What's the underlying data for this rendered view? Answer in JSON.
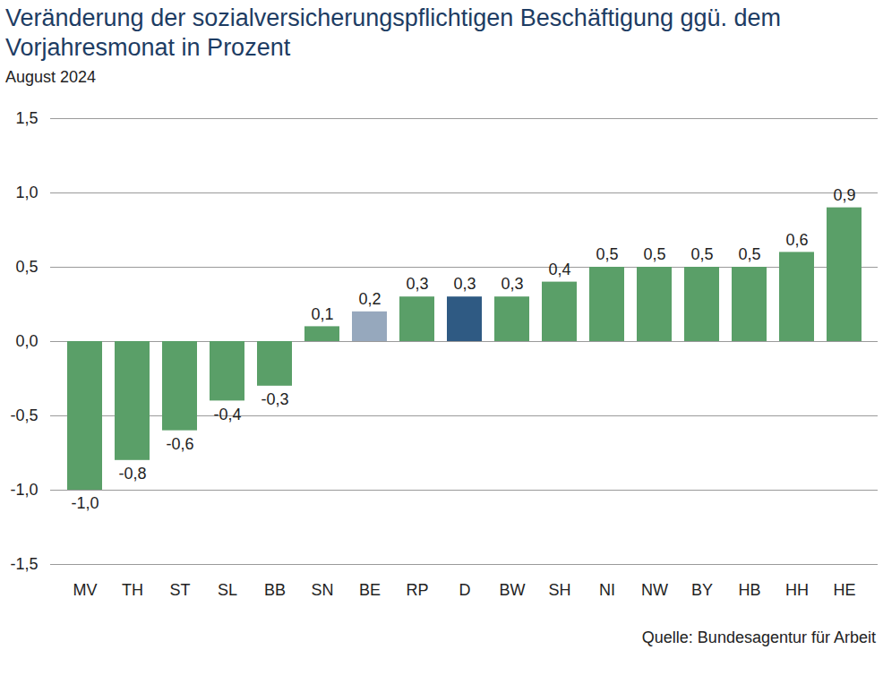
{
  "chart_data": {
    "type": "bar",
    "title": "Veränderung der sozialversicherungspflichtigen Beschäftigung ggü. dem Vorjahresmonat in Prozent",
    "subtitle": "August 2024",
    "caption": "Quelle: Bundesagentur für Arbeit",
    "categories": [
      "MV",
      "TH",
      "ST",
      "SL",
      "BB",
      "SN",
      "BE",
      "RP",
      "D",
      "BW",
      "SH",
      "NI",
      "NW",
      "BY",
      "HB",
      "HH",
      "HE"
    ],
    "values": [
      -1.0,
      -0.8,
      -0.6,
      -0.4,
      -0.3,
      0.1,
      0.2,
      0.3,
      0.3,
      0.3,
      0.4,
      0.5,
      0.5,
      0.5,
      0.5,
      0.6,
      0.9
    ],
    "value_labels": [
      "-1,0",
      "-0,8",
      "-0,6",
      "-0,4",
      "-0,3",
      "0,1",
      "0,2",
      "0,3",
      "0,3",
      "0,3",
      "0,4",
      "0,5",
      "0,5",
      "0,5",
      "0,5",
      "0,6",
      "0,9"
    ],
    "colors": [
      "#5a9f68",
      "#5a9f68",
      "#5a9f68",
      "#5a9f68",
      "#5a9f68",
      "#5a9f68",
      "#96a8bd",
      "#5a9f68",
      "#2f5a83",
      "#5a9f68",
      "#5a9f68",
      "#5a9f68",
      "#5a9f68",
      "#5a9f68",
      "#5a9f68",
      "#5a9f68",
      "#5a9f68"
    ],
    "ylim": [
      -1.5,
      1.5
    ],
    "yticks": [
      {
        "value": -1.5,
        "label": "-1,5"
      },
      {
        "value": -1.0,
        "label": "-1,0"
      },
      {
        "value": -0.5,
        "label": "-0,5"
      },
      {
        "value": 0.0,
        "label": "0,0"
      },
      {
        "value": 0.5,
        "label": "0,5"
      },
      {
        "value": 1.0,
        "label": "1,0"
      },
      {
        "value": 1.5,
        "label": "1,5"
      }
    ],
    "grid": true,
    "data_labels": true
  }
}
